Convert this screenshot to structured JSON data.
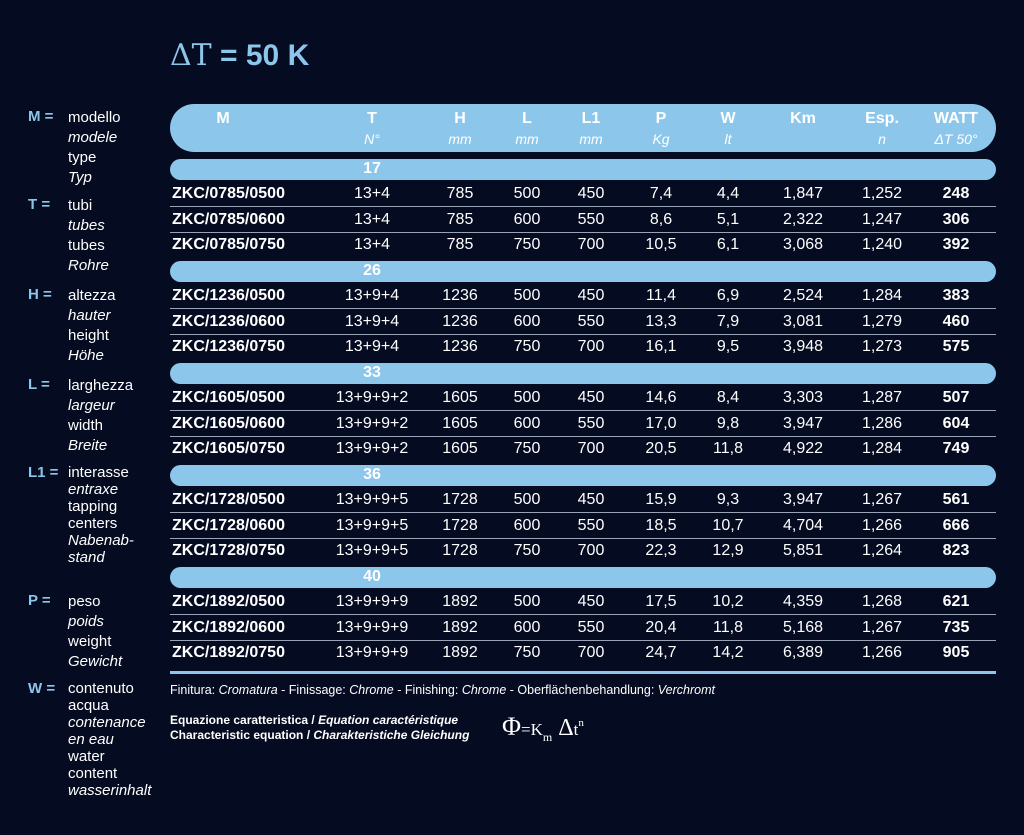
{
  "title": {
    "delta": "ΔT",
    "rest": " = 50 K"
  },
  "legend": [
    {
      "key": "M =",
      "lines": [
        [
          "modello",
          false
        ],
        [
          "modele",
          true
        ],
        [
          "type",
          false
        ],
        [
          "Typ",
          true
        ]
      ]
    },
    {
      "key": "T =",
      "lines": [
        [
          "tubi",
          false
        ],
        [
          "tubes",
          true
        ],
        [
          "tubes",
          false
        ],
        [
          "Rohre",
          true
        ]
      ]
    },
    {
      "key": "H =",
      "lines": [
        [
          "altezza",
          false
        ],
        [
          "hauter",
          true
        ],
        [
          "height",
          false
        ],
        [
          "Höhe",
          true
        ]
      ]
    },
    {
      "key": "L =",
      "lines": [
        [
          "larghezza",
          false
        ],
        [
          "largeur",
          true
        ],
        [
          "width",
          false
        ],
        [
          "Breite",
          true
        ]
      ]
    },
    {
      "key": "L1 =",
      "lines": [
        [
          "interasse",
          false
        ],
        [
          "entraxe",
          true
        ],
        [
          "tapping",
          false
        ],
        [
          "centers",
          false
        ],
        [
          "Nabenab-",
          true
        ],
        [
          "stand",
          true
        ]
      ]
    },
    {
      "key": "P =",
      "lines": [
        [
          "peso",
          false
        ],
        [
          "poids",
          true
        ],
        [
          "weight",
          false
        ],
        [
          "Gewicht",
          true
        ]
      ]
    },
    {
      "key": "W =",
      "lines": [
        [
          "contenuto",
          false
        ],
        [
          "acqua",
          false
        ],
        [
          "contenance",
          true
        ],
        [
          "en eau",
          true
        ],
        [
          "water",
          false
        ],
        [
          "content",
          false
        ],
        [
          "wasserinhalt",
          true
        ]
      ]
    }
  ],
  "table": {
    "headers": [
      {
        "top": "M",
        "bottom": ""
      },
      {
        "top": "T",
        "bottom": "N°"
      },
      {
        "top": "H",
        "bottom": "mm"
      },
      {
        "top": "L",
        "bottom": "mm"
      },
      {
        "top": "L1",
        "bottom": "mm"
      },
      {
        "top": "P",
        "bottom": "Kg"
      },
      {
        "top": "W",
        "bottom": "lt"
      },
      {
        "top": "Km",
        "bottom": ""
      },
      {
        "top": "Esp.",
        "bottom": "n"
      },
      {
        "top": "WATT",
        "bottom": "ΔT 50°"
      }
    ],
    "groups": [
      {
        "label": "17",
        "rows": [
          [
            "ZKC/0785/0500",
            "13+4",
            "785",
            "500",
            "450",
            "7,4",
            "4,4",
            "1,847",
            "1,252",
            "248"
          ],
          [
            "ZKC/0785/0600",
            "13+4",
            "785",
            "600",
            "550",
            "8,6",
            "5,1",
            "2,322",
            "1,247",
            "306"
          ],
          [
            "ZKC/0785/0750",
            "13+4",
            "785",
            "750",
            "700",
            "10,5",
            "6,1",
            "3,068",
            "1,240",
            "392"
          ]
        ]
      },
      {
        "label": "26",
        "rows": [
          [
            "ZKC/1236/0500",
            "13+9+4",
            "1236",
            "500",
            "450",
            "11,4",
            "6,9",
            "2,524",
            "1,284",
            "383"
          ],
          [
            "ZKC/1236/0600",
            "13+9+4",
            "1236",
            "600",
            "550",
            "13,3",
            "7,9",
            "3,081",
            "1,279",
            "460"
          ],
          [
            "ZKC/1236/0750",
            "13+9+4",
            "1236",
            "750",
            "700",
            "16,1",
            "9,5",
            "3,948",
            "1,273",
            "575"
          ]
        ]
      },
      {
        "label": "33",
        "rows": [
          [
            "ZKC/1605/0500",
            "13+9+9+2",
            "1605",
            "500",
            "450",
            "14,6",
            "8,4",
            "3,303",
            "1,287",
            "507"
          ],
          [
            "ZKC/1605/0600",
            "13+9+9+2",
            "1605",
            "600",
            "550",
            "17,0",
            "9,8",
            "3,947",
            "1,286",
            "604"
          ],
          [
            "ZKC/1605/0750",
            "13+9+9+2",
            "1605",
            "750",
            "700",
            "20,5",
            "11,8",
            "4,922",
            "1,284",
            "749"
          ]
        ]
      },
      {
        "label": "36",
        "rows": [
          [
            "ZKC/1728/0500",
            "13+9+9+5",
            "1728",
            "500",
            "450",
            "15,9",
            "9,3",
            "3,947",
            "1,267",
            "561"
          ],
          [
            "ZKC/1728/0600",
            "13+9+9+5",
            "1728",
            "600",
            "550",
            "18,5",
            "10,7",
            "4,704",
            "1,266",
            "666"
          ],
          [
            "ZKC/1728/0750",
            "13+9+9+5",
            "1728",
            "750",
            "700",
            "22,3",
            "12,9",
            "5,851",
            "1,264",
            "823"
          ]
        ]
      },
      {
        "label": "40",
        "rows": [
          [
            "ZKC/1892/0500",
            "13+9+9+9",
            "1892",
            "500",
            "450",
            "17,5",
            "10,2",
            "4,359",
            "1,268",
            "621"
          ],
          [
            "ZKC/1892/0600",
            "13+9+9+9",
            "1892",
            "600",
            "550",
            "20,4",
            "11,8",
            "5,168",
            "1,267",
            "735"
          ],
          [
            "ZKC/1892/0750",
            "13+9+9+9",
            "1892",
            "750",
            "700",
            "24,7",
            "14,2",
            "6,389",
            "1,266",
            "905"
          ]
        ]
      }
    ]
  },
  "finish": {
    "parts": [
      [
        "Finitura: ",
        false
      ],
      [
        "Cromatura",
        true
      ],
      [
        " - Finissage: ",
        false
      ],
      [
        "Chrome",
        true
      ],
      [
        " - Finishing: ",
        false
      ],
      [
        "Chrome",
        true
      ],
      [
        " - Oberflächenbehandlung: ",
        false
      ],
      [
        "Verchromt",
        true
      ]
    ]
  },
  "equation": {
    "line1_bold": "Equazione caratteristica / ",
    "line1_italic": "Equation caractéristique",
    "line2_bold": "Characteristic equation / ",
    "line2_italic": "Charakteristiche Gleichung",
    "phi": "Φ",
    "eq": "=K",
    "sub": "m",
    "delta": "Δ",
    "t": "t",
    "sup": "n"
  }
}
